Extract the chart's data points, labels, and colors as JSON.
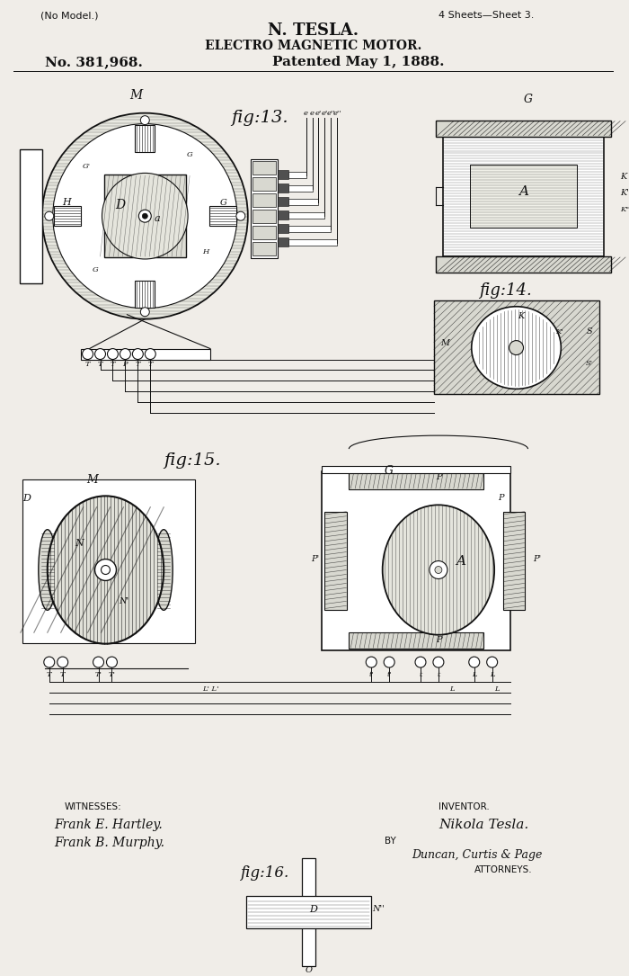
{
  "title_line1": "(No Model.)",
  "title_line2": "4 Sheets—Sheet 3.",
  "title_line3": "N. TESLA.",
  "title_line4": "ELECTRO MAGNETIC MOTOR.",
  "title_line5": "No. 381,968.",
  "title_line6": "Patented May 1, 1888.",
  "fig13_label": "fig:13.",
  "fig14_label": "fig:14.",
  "fig15_label": "fig:15.",
  "fig16_label": "fig:16.",
  "witnesses_label": "WITNESSES:",
  "witness1": "Frank E. Hartley.",
  "witness2": "Frank B. Murphy.",
  "inventor_label": "INVENTOR.",
  "inventor_name": "Nikola Tesla.",
  "by_label": "BY",
  "attorneys": "Duncan, Curtis & Page",
  "attorneys_label": "ATTORNEYS.",
  "bg_color": "#ffffff",
  "line_color": "#111111",
  "paper_color": "#f0ede8"
}
